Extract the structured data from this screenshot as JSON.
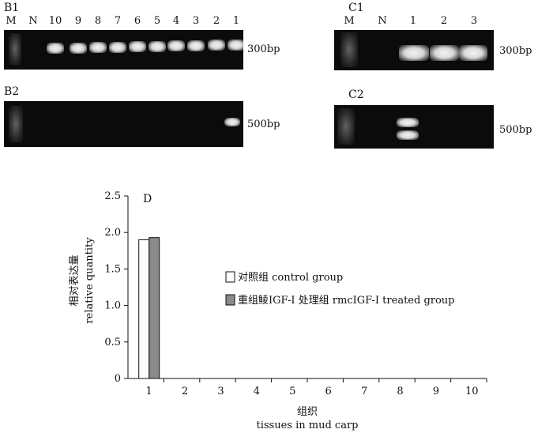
{
  "panels": {
    "b1": {
      "label": "B1",
      "lanes": [
        "M",
        "N",
        "10",
        "9",
        "8",
        "7",
        "6",
        "5",
        "4",
        "3",
        "2",
        "1"
      ],
      "size": "300bp"
    },
    "b2": {
      "label": "B2",
      "size": "500bp"
    },
    "c1": {
      "label": "C1",
      "lanes": [
        "M",
        "N",
        "1",
        "2",
        "3"
      ],
      "size": "300bp"
    },
    "c2": {
      "label": "C2",
      "size": "500bp"
    }
  },
  "chart_data": {
    "type": "bar",
    "panel_label": "D",
    "categories": [
      "1",
      "2",
      "3",
      "4",
      "5",
      "6",
      "7",
      "8",
      "9",
      "10"
    ],
    "series": [
      {
        "name": "对照组  control group",
        "values": [
          1.9,
          0,
          0,
          0,
          0,
          0,
          0,
          0,
          0,
          0
        ],
        "color": "#ffffff"
      },
      {
        "name": "重组鲮IGF-I 处理组 rmcIGF-I treated group",
        "values": [
          1.93,
          0,
          0,
          0,
          0,
          0,
          0,
          0,
          0,
          0
        ],
        "color": "#8a8a8a"
      }
    ],
    "yticks": [
      "0",
      "0.5",
      "1.0",
      "1.5",
      "2.0",
      "2.5"
    ],
    "ylim": [
      0,
      2.5
    ],
    "ylabel_cn": "相对表达量",
    "ylabel_en": "relative quantity",
    "xlabel_cn": "组织",
    "xlabel_en": "tissues in mud carp",
    "legend_position": "center-right"
  }
}
